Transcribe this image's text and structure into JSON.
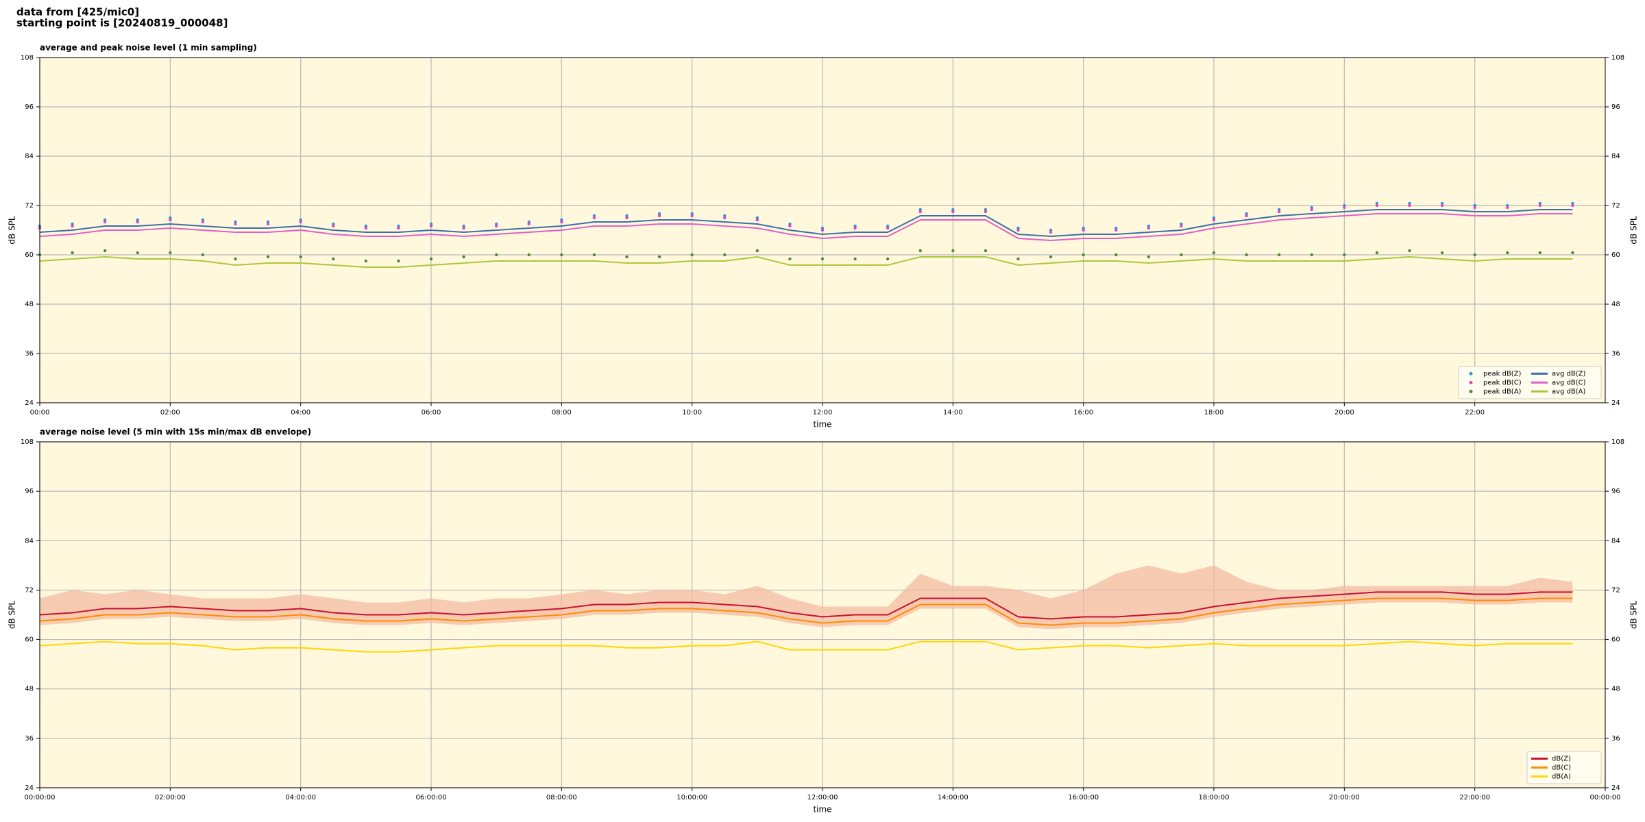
{
  "header": {
    "lines": [
      "data from [425/mic0]",
      "starting point is [20240819_000048]"
    ]
  },
  "chart_data": [
    {
      "type": "line",
      "title": "average and peak noise level (1 min sampling)",
      "xlabel": "time",
      "ylabel": "dB SPL",
      "background": "#fff8dc",
      "grid": true,
      "legend": "lower right",
      "legend_columns": 2,
      "x": [
        0,
        0.5,
        1,
        1.5,
        2,
        2.5,
        3,
        3.5,
        4,
        4.5,
        5,
        5.5,
        6,
        6.5,
        7,
        7.5,
        8,
        8.5,
        9,
        9.5,
        10,
        10.5,
        11,
        11.5,
        12,
        12.5,
        13,
        13.5,
        14,
        14.5,
        15,
        15.5,
        16,
        16.5,
        17,
        17.5,
        18,
        18.5,
        19,
        19.5,
        20,
        20.5,
        21,
        21.5,
        22,
        22.5,
        23,
        23.5
      ],
      "xlim": [
        0,
        24
      ],
      "xticks": [
        {
          "value": 0,
          "label": "00:00"
        },
        {
          "value": 2,
          "label": "02:00"
        },
        {
          "value": 4,
          "label": "04:00"
        },
        {
          "value": 6,
          "label": "06:00"
        },
        {
          "value": 8,
          "label": "08:00"
        },
        {
          "value": 10,
          "label": "10:00"
        },
        {
          "value": 12,
          "label": "12:00"
        },
        {
          "value": 14,
          "label": "14:00"
        },
        {
          "value": 16,
          "label": "16:00"
        },
        {
          "value": 18,
          "label": "18:00"
        },
        {
          "value": 20,
          "label": "20:00"
        },
        {
          "value": 22,
          "label": "22:00"
        }
      ],
      "ylim": [
        24,
        108
      ],
      "yticks": [
        24,
        36,
        48,
        60,
        72,
        84,
        96,
        108
      ],
      "series": [
        {
          "name": "peak dB(Z)",
          "style": "markers",
          "color": "#1f9bd6",
          "values": [
            67,
            67.5,
            68.5,
            68.5,
            69,
            68.5,
            68,
            68,
            68.5,
            67.5,
            67,
            67,
            67.5,
            67,
            67.5,
            68,
            68.5,
            69.5,
            69.5,
            70,
            70,
            69.5,
            69,
            67.5,
            66.5,
            67,
            67,
            71,
            71,
            71,
            66.5,
            66,
            66.5,
            66.5,
            67,
            67.5,
            69,
            70,
            71,
            71.5,
            72,
            72.5,
            72.5,
            72.5,
            72,
            72,
            72.5,
            72.5
          ]
        },
        {
          "name": "peak dB(C)",
          "style": "markers",
          "color": "#e83fd0",
          "values": [
            66.5,
            67,
            68,
            68,
            68.5,
            68,
            67.5,
            67.5,
            68,
            67,
            66.5,
            66.5,
            67,
            66.5,
            67,
            67.5,
            68,
            69,
            69,
            69.5,
            69.5,
            69,
            68.5,
            67,
            66,
            66.5,
            66.5,
            70.5,
            70.5,
            70.5,
            66,
            65.5,
            66,
            66,
            66.5,
            67,
            68.5,
            69.5,
            70.5,
            71,
            71.5,
            72,
            72,
            72,
            71.5,
            71.5,
            72,
            72
          ]
        },
        {
          "name": "peak dB(A)",
          "style": "markers",
          "color": "#4a8a3a",
          "values": [
            60,
            60.5,
            61,
            60.5,
            60.5,
            60,
            59,
            59.5,
            59.5,
            59,
            58.5,
            58.5,
            59,
            59.5,
            60,
            60,
            60,
            60,
            59.5,
            59.5,
            60,
            60,
            61,
            59,
            59,
            59,
            59,
            61,
            61,
            61,
            59,
            59.5,
            60,
            60,
            59.5,
            60,
            60.5,
            60,
            60,
            60,
            60,
            60.5,
            61,
            60.5,
            60,
            60.5,
            60.5,
            60.5
          ]
        },
        {
          "name": "avg dB(Z)",
          "style": "line",
          "color": "#3a6fa8",
          "values": [
            65.5,
            66,
            67,
            67,
            67.5,
            67,
            66.5,
            66.5,
            67,
            66,
            65.5,
            65.5,
            66,
            65.5,
            66,
            66.5,
            67,
            68,
            68,
            68.5,
            68.5,
            68,
            67.5,
            66,
            65,
            65.5,
            65.5,
            69.5,
            69.5,
            69.5,
            65,
            64.5,
            65,
            65,
            65.5,
            66,
            67.5,
            68.5,
            69.5,
            70,
            70.5,
            71,
            71,
            71,
            70.5,
            70.5,
            71,
            71
          ]
        },
        {
          "name": "avg dB(C)",
          "style": "line",
          "color": "#e060c8",
          "values": [
            64.5,
            65,
            66,
            66,
            66.5,
            66,
            65.5,
            65.5,
            66,
            65,
            64.5,
            64.5,
            65,
            64.5,
            65,
            65.5,
            66,
            67,
            67,
            67.5,
            67.5,
            67,
            66.5,
            65,
            64,
            64.5,
            64.5,
            68.5,
            68.5,
            68.5,
            64,
            63.5,
            64,
            64,
            64.5,
            65,
            66.5,
            67.5,
            68.5,
            69,
            69.5,
            70,
            70,
            70,
            69.5,
            69.5,
            70,
            70
          ]
        },
        {
          "name": "avg dB(A)",
          "style": "line",
          "color": "#a8c83a",
          "values": [
            58.5,
            59,
            59.5,
            59,
            59,
            58.5,
            57.5,
            58,
            58,
            57.5,
            57,
            57,
            57.5,
            58,
            58.5,
            58.5,
            58.5,
            58.5,
            58,
            58,
            58.5,
            58.5,
            59.5,
            57.5,
            57.5,
            57.5,
            57.5,
            59.5,
            59.5,
            59.5,
            57.5,
            58,
            58.5,
            58.5,
            58,
            58.5,
            59,
            58.5,
            58.5,
            58.5,
            58.5,
            59,
            59.5,
            59,
            58.5,
            59,
            59,
            59
          ]
        }
      ]
    },
    {
      "type": "line",
      "title": "average noise level (5 min with 15s min/max dB envelope)",
      "xlabel": "time",
      "ylabel": "dB SPL",
      "background": "#fff8dc",
      "grid": true,
      "legend": "lower right",
      "legend_columns": 1,
      "x": [
        0,
        0.5,
        1,
        1.5,
        2,
        2.5,
        3,
        3.5,
        4,
        4.5,
        5,
        5.5,
        6,
        6.5,
        7,
        7.5,
        8,
        8.5,
        9,
        9.5,
        10,
        10.5,
        11,
        11.5,
        12,
        12.5,
        13,
        13.5,
        14,
        14.5,
        15,
        15.5,
        16,
        16.5,
        17,
        17.5,
        18,
        18.5,
        19,
        19.5,
        20,
        20.5,
        21,
        21.5,
        22,
        22.5,
        23,
        23.5
      ],
      "xlim": [
        0,
        24
      ],
      "xticks": [
        {
          "value": 0,
          "label": "00:00:00"
        },
        {
          "value": 2,
          "label": "02:00:00"
        },
        {
          "value": 4,
          "label": "04:00:00"
        },
        {
          "value": 6,
          "label": "06:00:00"
        },
        {
          "value": 8,
          "label": "08:00:00"
        },
        {
          "value": 10,
          "label": "10:00:00"
        },
        {
          "value": 12,
          "label": "12:00:00"
        },
        {
          "value": 14,
          "label": "14:00:00"
        },
        {
          "value": 16,
          "label": "16:00:00"
        },
        {
          "value": 18,
          "label": "18:00:00"
        },
        {
          "value": 20,
          "label": "20:00:00"
        },
        {
          "value": 22,
          "label": "22:00:00"
        },
        {
          "value": 24,
          "label": "00:00:00"
        }
      ],
      "ylim": [
        24,
        108
      ],
      "yticks": [
        24,
        36,
        48,
        60,
        72,
        84,
        96,
        108
      ],
      "envelope": {
        "color": "#f4b8a0",
        "upper": [
          70,
          72,
          71,
          72,
          71,
          70,
          70,
          70,
          71,
          70,
          69,
          69,
          70,
          69,
          70,
          70,
          71,
          72,
          71,
          72,
          72,
          71,
          73,
          70,
          68,
          68,
          68,
          76,
          73,
          73,
          72,
          70,
          72,
          76,
          78,
          76,
          78,
          74,
          72,
          72,
          73,
          73,
          73,
          73,
          73,
          73,
          75,
          74
        ],
        "lower": [
          63.5,
          64,
          65,
          65,
          65.5,
          65,
          64.5,
          64.5,
          65,
          64,
          63.5,
          63.5,
          64,
          63.5,
          64,
          64.5,
          65,
          66,
          66,
          66.5,
          66.5,
          66,
          65.5,
          64,
          63,
          63.5,
          63.5,
          67.5,
          67.5,
          67.5,
          63,
          62.5,
          63,
          63,
          63.5,
          64,
          65.5,
          66.5,
          67.5,
          68,
          68.5,
          69,
          69,
          69,
          68.5,
          68.5,
          69,
          69
        ]
      },
      "series": [
        {
          "name": "dB(Z)",
          "style": "line",
          "color": "#c8102e",
          "values": [
            66,
            66.5,
            67.5,
            67.5,
            68,
            67.5,
            67,
            67,
            67.5,
            66.5,
            66,
            66,
            66.5,
            66,
            66.5,
            67,
            67.5,
            68.5,
            68.5,
            69,
            69,
            68.5,
            68,
            66.5,
            65.5,
            66,
            66,
            70,
            70,
            70,
            65.5,
            65,
            65.5,
            65.5,
            66,
            66.5,
            68,
            69,
            70,
            70.5,
            71,
            71.5,
            71.5,
            71.5,
            71,
            71,
            71.5,
            71.5
          ]
        },
        {
          "name": "dB(C)",
          "style": "line",
          "color": "#ff8c00",
          "values": [
            64.5,
            65,
            66,
            66,
            66.5,
            66,
            65.5,
            65.5,
            66,
            65,
            64.5,
            64.5,
            65,
            64.5,
            65,
            65.5,
            66,
            67,
            67,
            67.5,
            67.5,
            67,
            66.5,
            65,
            64,
            64.5,
            64.5,
            68.5,
            68.5,
            68.5,
            64,
            63.5,
            64,
            64,
            64.5,
            65,
            66.5,
            67.5,
            68.5,
            69,
            69.5,
            70,
            70,
            70,
            69.5,
            69.5,
            70,
            70
          ]
        },
        {
          "name": "dB(A)",
          "style": "line",
          "color": "#ffd700",
          "values": [
            58.5,
            59,
            59.5,
            59,
            59,
            58.5,
            57.5,
            58,
            58,
            57.5,
            57,
            57,
            57.5,
            58,
            58.5,
            58.5,
            58.5,
            58.5,
            58,
            58,
            58.5,
            58.5,
            59.5,
            57.5,
            57.5,
            57.5,
            57.5,
            59.5,
            59.5,
            59.5,
            57.5,
            58,
            58.5,
            58.5,
            58,
            58.5,
            59,
            58.5,
            58.5,
            58.5,
            58.5,
            59,
            59.5,
            59,
            58.5,
            59,
            59,
            59
          ]
        }
      ]
    }
  ]
}
